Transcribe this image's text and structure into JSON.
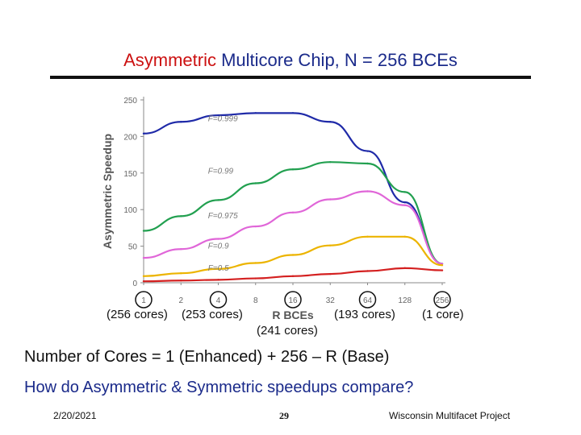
{
  "slide": {
    "title_accent": "Asymmetric",
    "title_rest": "Multicore Chip, N = 256 BCEs",
    "annotations": {
      "cores_256": "(256 cores)",
      "cores_253": "(253 cores)",
      "cores_241": "(241 cores)",
      "cores_193": "(193 cores)",
      "cores_1": "(1 core)"
    },
    "line1": "Number of Cores = 1 (Enhanced) + 256 – R (Base)",
    "line2": "How do Asymmetric & Symmetric speedups compare?",
    "footer": {
      "date": "2/20/2021",
      "page": "29",
      "org": "Wisconsin Multifacet Project"
    }
  },
  "chart_data": {
    "type": "line",
    "title": "",
    "xlabel": "R BCEs",
    "ylabel": "Asymmetric Speedup",
    "x_scale": "log2",
    "x": [
      1,
      2,
      4,
      8,
      16,
      32,
      64,
      128,
      256
    ],
    "x_tick_labels": [
      "1",
      "2",
      "4",
      "8",
      "16",
      "32",
      "64",
      "128",
      "256"
    ],
    "circled_ticks": [
      "1",
      "4",
      "16",
      "64",
      "256"
    ],
    "ylim": [
      0,
      250
    ],
    "y_ticks": [
      0,
      50,
      100,
      150,
      200,
      250
    ],
    "grid": false,
    "series": [
      {
        "name": "F=0.999",
        "color": "#1f2aa8",
        "values": [
          204,
          220,
          229,
          232,
          232,
          220,
          180,
          110,
          26
        ]
      },
      {
        "name": "F=0.99",
        "color": "#22a050",
        "values": [
          71,
          91,
          113,
          136,
          155,
          165,
          163,
          124,
          26
        ]
      },
      {
        "name": "F=0.975",
        "color": "#e066d8",
        "values": [
          34,
          46,
          60,
          77,
          96,
          114,
          125,
          106,
          26
        ]
      },
      {
        "name": "F=0.9",
        "color": "#ecb400",
        "values": [
          9,
          13,
          19,
          27,
          38,
          51,
          63,
          63,
          24
        ]
      },
      {
        "name": "F=0.5",
        "color": "#d42020",
        "values": [
          2,
          3,
          4,
          6,
          9,
          12,
          16,
          20,
          17
        ]
      }
    ]
  }
}
